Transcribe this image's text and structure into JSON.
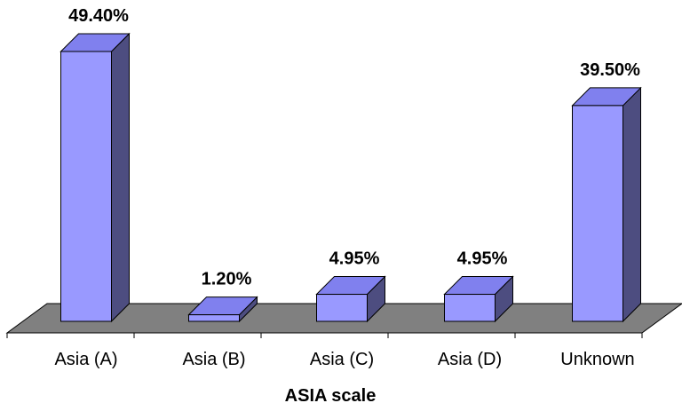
{
  "chart_data": {
    "type": "bar",
    "style": "3d-column",
    "categories": [
      "Asia (A)",
      "Asia (B)",
      "Asia (C)",
      "Asia (D)",
      "Unknown"
    ],
    "values": [
      49.4,
      1.2,
      4.95,
      4.95,
      39.5
    ],
    "data_labels": [
      "49.40%",
      "1.20%",
      "4.95%",
      "4.95%",
      "39.50%"
    ],
    "xlabel": "ASIA scale",
    "ylabel": "",
    "ylim": [
      0,
      50
    ],
    "grid": false,
    "legend": "none",
    "colors": {
      "bar_front": "#9999ff",
      "bar_top": "#8080ee",
      "bar_side": "#4d4d80",
      "floor": "#808080",
      "outline": "#000000"
    }
  }
}
